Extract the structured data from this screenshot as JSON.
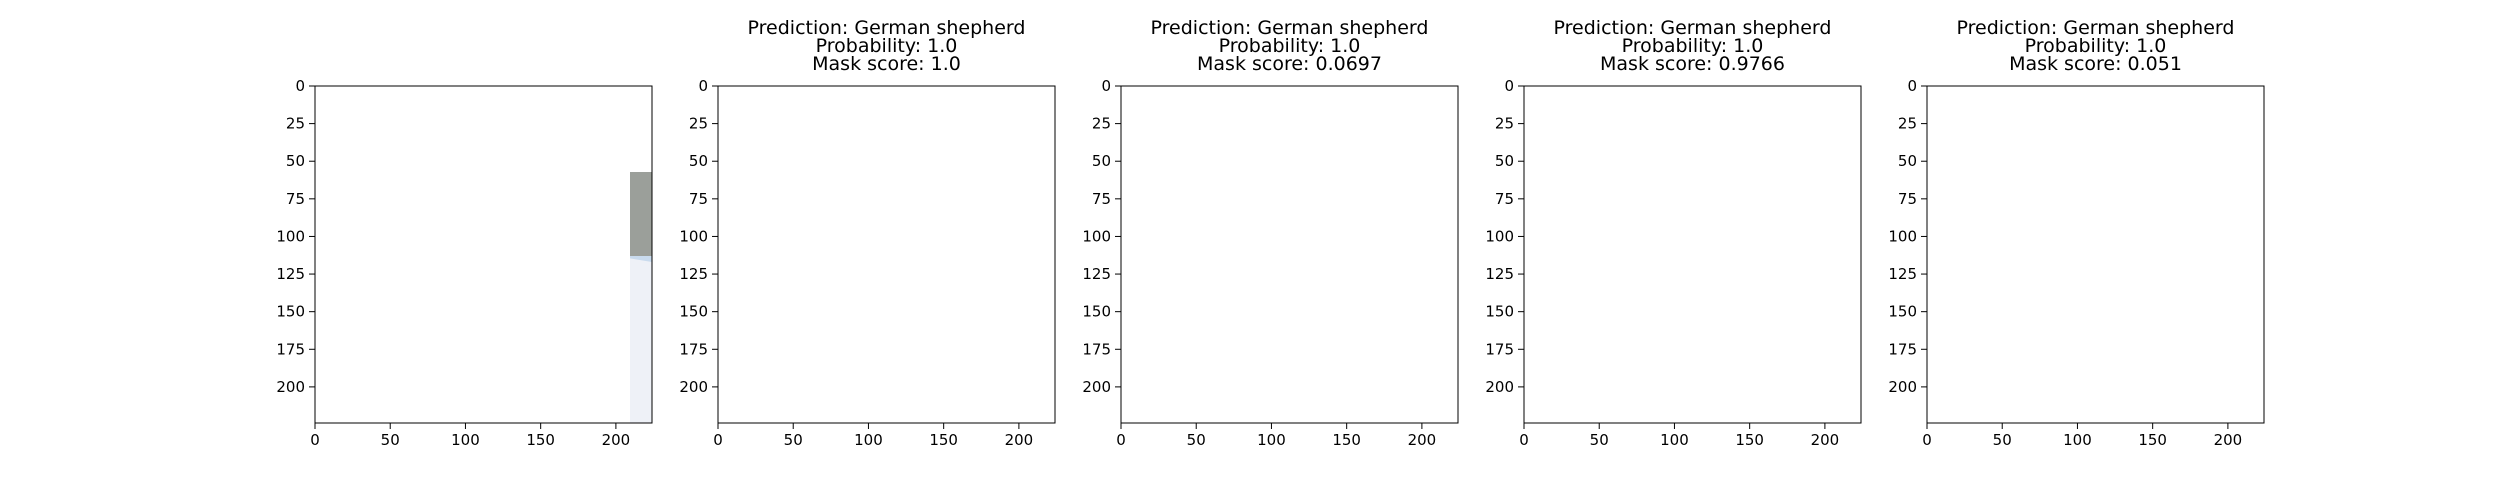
{
  "chart_data": [
    {
      "type": "image",
      "image": "photo-german-shepherd-in-snow",
      "title": [],
      "xlim": [
        0,
        224
      ],
      "ylim": [
        224,
        0
      ],
      "xticks": [
        0,
        50,
        100,
        150,
        200
      ],
      "yticks": [
        0,
        25,
        50,
        75,
        100,
        125,
        150,
        175,
        200
      ]
    },
    {
      "type": "mask",
      "title": [
        "Prediction: German shepherd",
        "Probability: 1.0",
        "Mask score: 1.0"
      ],
      "prediction": "German shepherd",
      "probability": 1.0,
      "mask_score": 1.0,
      "mask": "dog-and-ground",
      "xlim": [
        0,
        224
      ],
      "ylim": [
        224,
        0
      ],
      "xticks": [
        0,
        50,
        100,
        150,
        200
      ],
      "yticks": [
        0,
        25,
        50,
        75,
        100,
        125,
        150,
        175,
        200
      ]
    },
    {
      "type": "mask",
      "title": [
        "Prediction: German shepherd",
        "Probability: 1.0",
        "Mask score: 0.0697"
      ],
      "prediction": "German shepherd",
      "probability": 1.0,
      "mask_score": 0.0697,
      "mask": "dog-only",
      "xlim": [
        0,
        224
      ],
      "ylim": [
        224,
        0
      ],
      "xticks": [
        0,
        50,
        100,
        150,
        200
      ],
      "yticks": [
        0,
        25,
        50,
        75,
        100,
        125,
        150,
        175,
        200
      ]
    },
    {
      "type": "mask",
      "title": [
        "Prediction: German shepherd",
        "Probability: 1.0",
        "Mask score: 0.9766"
      ],
      "prediction": "German shepherd",
      "probability": 1.0,
      "mask_score": 0.9766,
      "mask": "dog-and-ground",
      "xlim": [
        0,
        224
      ],
      "ylim": [
        224,
        0
      ],
      "xticks": [
        0,
        50,
        100,
        150,
        200
      ],
      "yticks": [
        0,
        25,
        50,
        75,
        100,
        125,
        150,
        175,
        200
      ]
    },
    {
      "type": "mask",
      "title": [
        "Prediction: German shepherd",
        "Probability: 1.0",
        "Mask score: 0.051"
      ],
      "prediction": "German shepherd",
      "probability": 1.0,
      "mask_score": 0.051,
      "mask": "dog-plus-patch",
      "xlim": [
        0,
        224
      ],
      "ylim": [
        224,
        0
      ],
      "xticks": [
        0,
        50,
        100,
        150,
        200
      ],
      "yticks": [
        0,
        25,
        50,
        75,
        100,
        125,
        150,
        175,
        200
      ]
    }
  ],
  "colors": {
    "mask_background": "#8080c2",
    "mask_foreground": "#c97e7e",
    "outline": "#7ec8c8",
    "snow": "#eef1f7",
    "sky": "#c9dbee",
    "brick": "#9a4a3c",
    "fur": "#9c6a3a",
    "fur_dark": "#3a2a1c"
  }
}
